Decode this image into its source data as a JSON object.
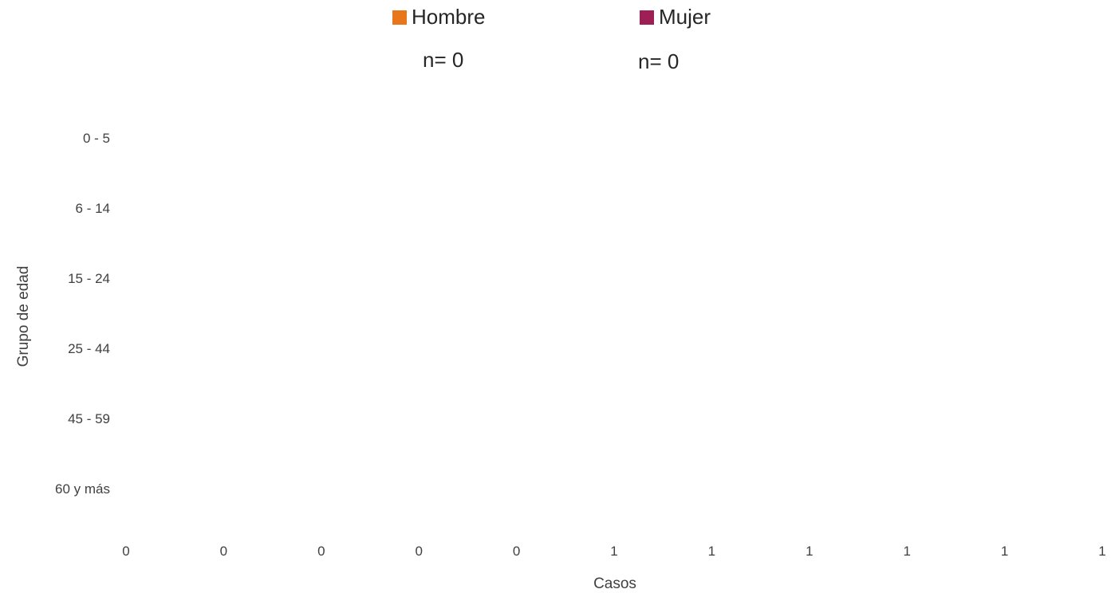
{
  "colors": {
    "hombre": "#E8761A",
    "mujer": "#9E1F55",
    "text": "#404040"
  },
  "legend": [
    {
      "name": "Hombre",
      "n_label": "n= 0"
    },
    {
      "name": "Mujer",
      "n_label": "n= 0"
    }
  ],
  "chart_data": {
    "type": "bar",
    "orientation": "horizontal",
    "categories": [
      "0 - 5",
      "6 - 14",
      "15 - 24",
      "25 - 44",
      "45 - 59",
      "60 y más"
    ],
    "series": [
      {
        "name": "Hombre",
        "values": [
          0,
          0,
          0,
          0,
          0,
          0
        ]
      },
      {
        "name": "Mujer",
        "values": [
          0,
          0,
          0,
          0,
          0,
          0
        ]
      }
    ],
    "x_tick_labels": [
      "0",
      "0",
      "0",
      "0",
      "0",
      "1",
      "1",
      "1",
      "1",
      "1",
      "1"
    ],
    "xlabel": "Casos",
    "ylabel": "Grupo de edad",
    "xlim": [
      0,
      1
    ],
    "grid": false,
    "legend_position": "top"
  }
}
